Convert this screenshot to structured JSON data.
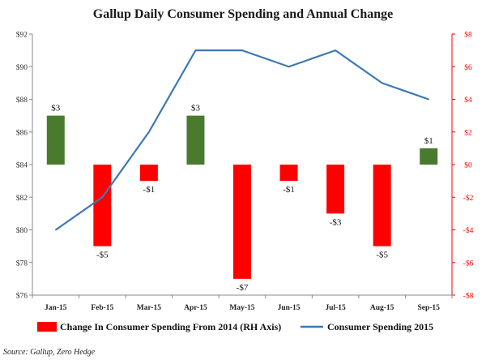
{
  "chart_data": {
    "type": "bar+line",
    "title": "Gallup Daily Consumer Spending and Annual Change",
    "categories": [
      "Jan-15",
      "Feb-15",
      "Mar-15",
      "Apr-15",
      "May-15",
      "Jun-15",
      "Jul-15",
      "Aug-15",
      "Sep-15"
    ],
    "series": [
      {
        "name": "Change In Consumer Spending From 2014 (RH Axis)",
        "type": "bar",
        "axis": "right",
        "values": [
          3,
          -5,
          -1,
          3,
          -7,
          -1,
          -3,
          -5,
          1
        ],
        "labels": [
          "$3",
          "-$5",
          "-$1",
          "$3",
          "-$7",
          "-$1",
          "-$3",
          "-$5",
          "$1"
        ]
      },
      {
        "name": "Consumer Spending 2015",
        "type": "line",
        "axis": "left",
        "values": [
          80,
          82,
          86,
          91,
          91,
          90,
          91,
          89,
          88
        ]
      }
    ],
    "left_axis": {
      "min": 76,
      "max": 92,
      "ticks": [
        76,
        78,
        80,
        82,
        84,
        86,
        88,
        90,
        92
      ],
      "tick_labels": [
        "$76",
        "$78",
        "$80",
        "$82",
        "$84",
        "$86",
        "$88",
        "$90",
        "$92"
      ]
    },
    "right_axis": {
      "min": -8,
      "max": 8,
      "ticks": [
        -8,
        -6,
        -4,
        -2,
        0,
        2,
        4,
        6,
        8
      ],
      "tick_labels": [
        "-$8",
        "-$6",
        "-$4",
        "-$2",
        "$0",
        "$2",
        "$4",
        "$6",
        "$8"
      ]
    },
    "grid": false,
    "legend_position": "bottom",
    "source": "Source: Gallup, Zero Hedge",
    "colors": {
      "positive": "#4a7a2e",
      "negative": "#ff0000",
      "line": "#3c78b4",
      "right_axis": "#ff0000"
    }
  }
}
